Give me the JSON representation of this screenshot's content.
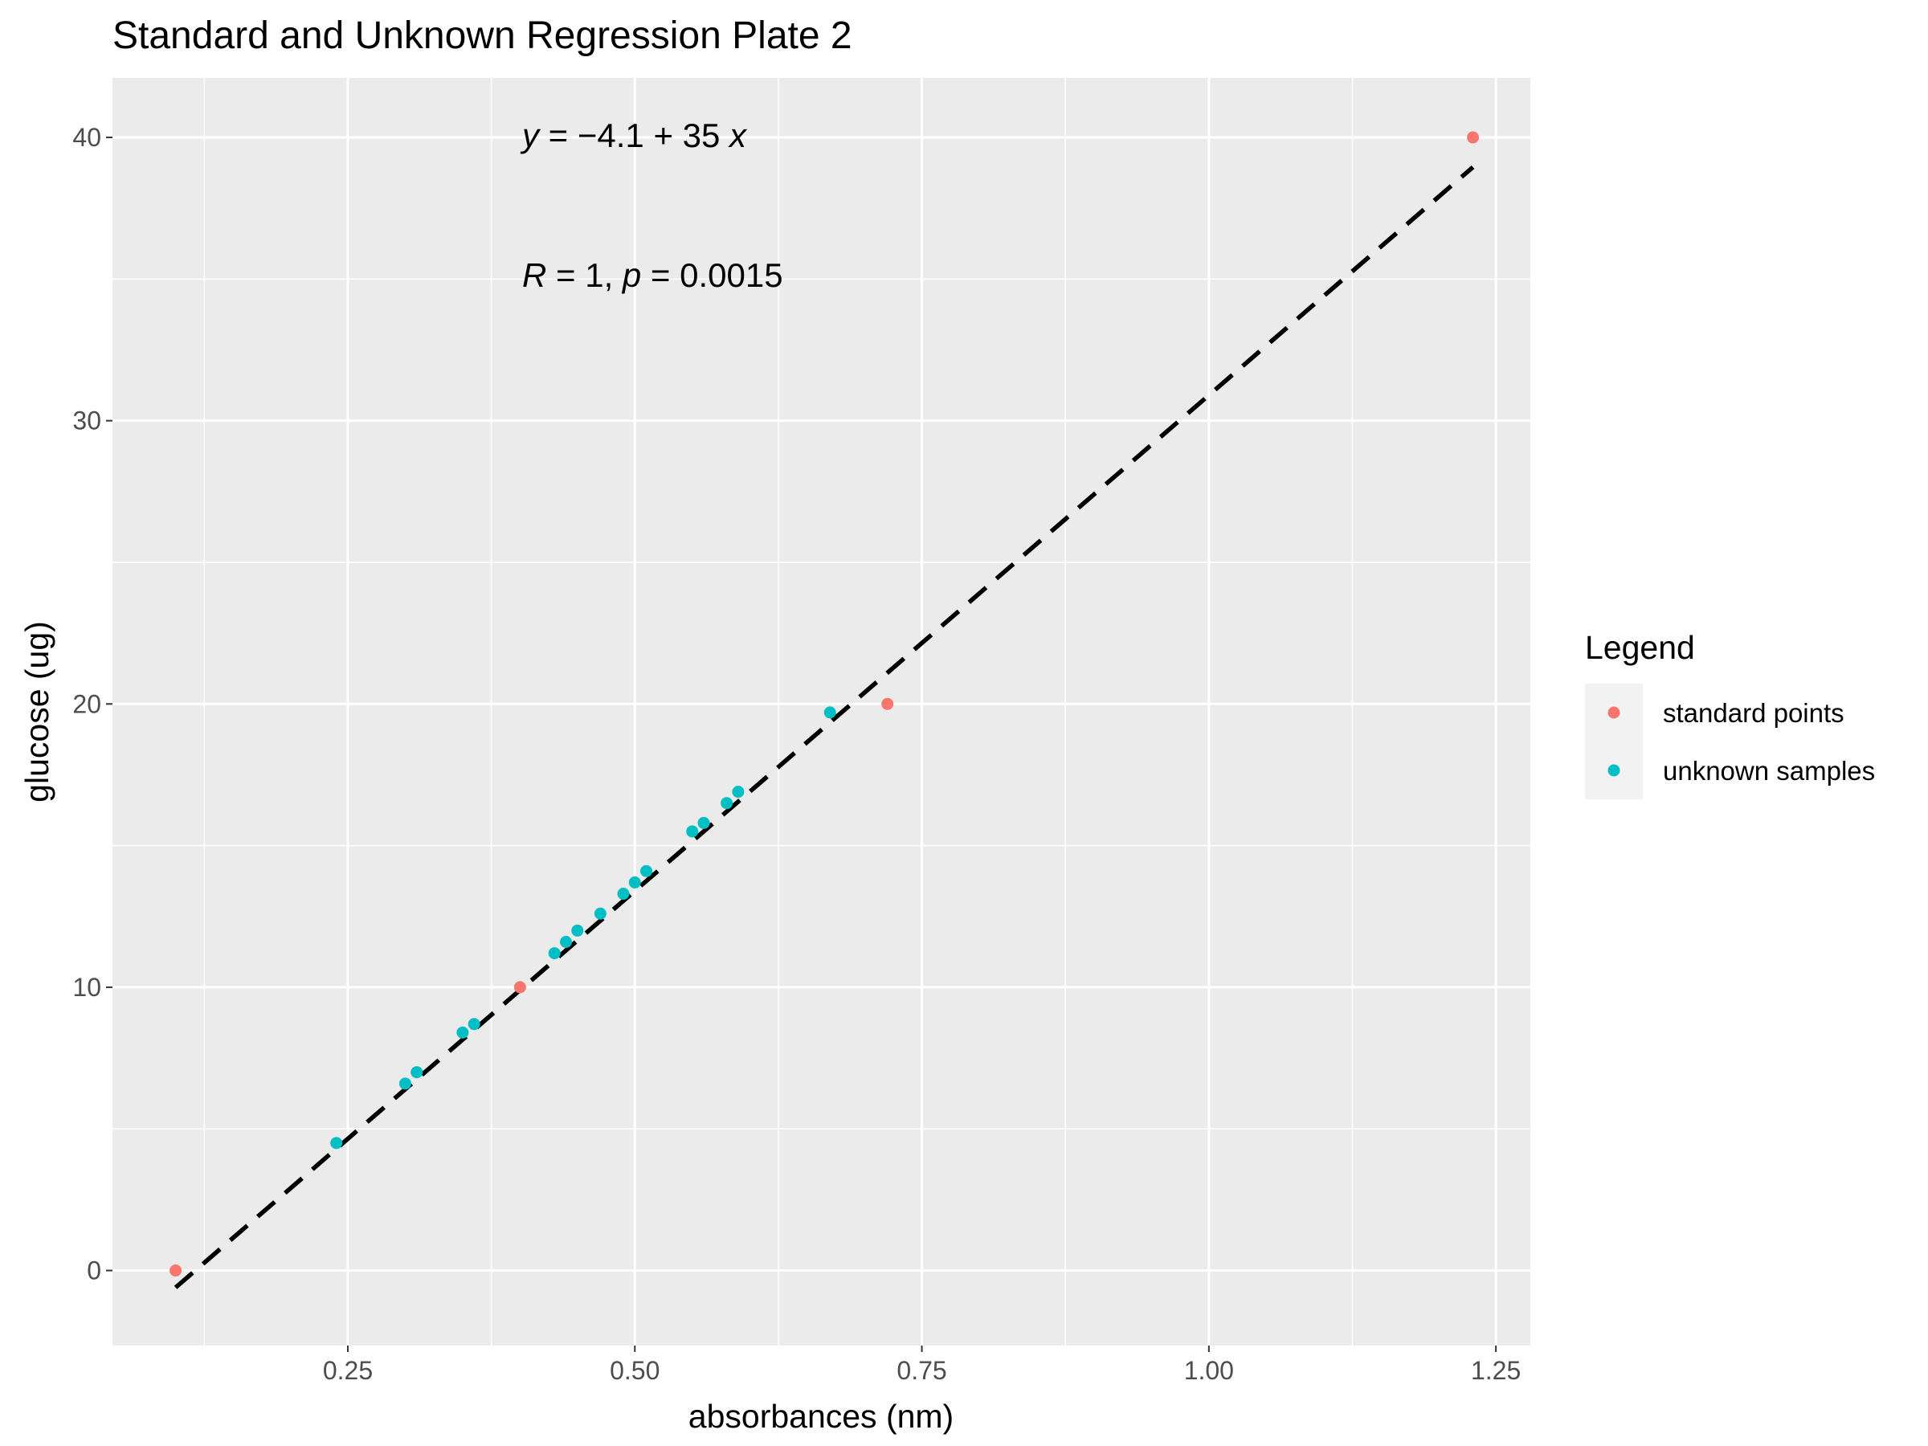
{
  "chart_data": {
    "type": "scatter",
    "title": "Standard and Unknown Regression Plate 2",
    "xlabel": "absorbances (nm)",
    "ylabel": "glucose (ug)",
    "xlim": [
      0.045,
      1.28
    ],
    "ylim": [
      -2.65,
      42.1
    ],
    "x_ticks": [
      0.25,
      0.5,
      0.75,
      1.0,
      1.25
    ],
    "x_tick_labels": [
      "0.25",
      "0.50",
      "0.75",
      "1.00",
      "1.25"
    ],
    "y_ticks": [
      0,
      10,
      20,
      30,
      40
    ],
    "y_tick_labels": [
      "0",
      "10",
      "20",
      "30",
      "40"
    ],
    "grid": true,
    "legend": {
      "title": "Legend",
      "position": "right"
    },
    "series": [
      {
        "name": "standard points",
        "color": "#F8766D",
        "x": [
          0.1,
          0.4,
          0.72,
          1.23
        ],
        "y": [
          0,
          10,
          20,
          40
        ]
      },
      {
        "name": "unknown samples",
        "color": "#00BFC4",
        "x": [
          0.24,
          0.3,
          0.31,
          0.35,
          0.36,
          0.43,
          0.44,
          0.45,
          0.47,
          0.49,
          0.5,
          0.51,
          0.55,
          0.56,
          0.58,
          0.59,
          0.67
        ],
        "y": [
          4.5,
          6.6,
          7.0,
          8.4,
          8.7,
          11.2,
          11.6,
          12.0,
          12.6,
          13.3,
          13.7,
          14.1,
          15.5,
          15.8,
          16.5,
          16.9,
          19.7
        ]
      }
    ],
    "regression_line": {
      "intercept": -4.1,
      "slope": 35,
      "x_range": [
        0.1,
        1.23
      ],
      "color": "#000000",
      "style": "dashed"
    },
    "annotations": [
      {
        "parts": [
          [
            "y",
            true
          ],
          [
            " = −4.1 + 35 ",
            false
          ],
          [
            "x",
            true
          ]
        ]
      },
      {
        "parts": [
          [
            "R",
            true
          ],
          [
            " = 1, ",
            false
          ],
          [
            "p",
            true
          ],
          [
            " = 0.0015",
            false
          ]
        ]
      }
    ]
  }
}
